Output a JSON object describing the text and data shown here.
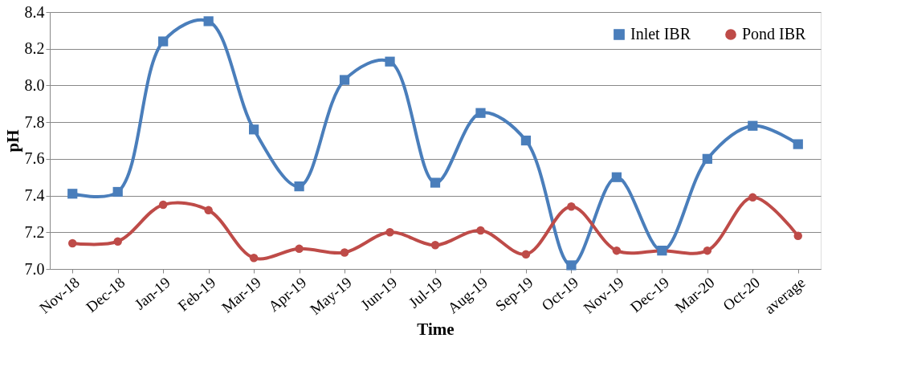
{
  "chart_data": {
    "type": "line",
    "xlabel": "Time",
    "ylabel": "pH",
    "categories": [
      "Nov-18",
      "Dec-18",
      "Jan-19",
      "Feb-19",
      "Mar-19",
      "Apr-19",
      "May-19",
      "Jun-19",
      "Jul-19",
      "Aug-19",
      "Sep-19",
      "Oct-19",
      "Nov-19",
      "Dec-19",
      "Mar-20",
      "Oct-20",
      "average"
    ],
    "series": [
      {
        "name": "Inlet IBR",
        "color": "#4a7ebb",
        "marker": "square",
        "values": [
          7.41,
          7.42,
          8.24,
          8.35,
          7.76,
          7.45,
          8.03,
          8.13,
          7.47,
          7.85,
          7.7,
          7.02,
          7.5,
          7.1,
          7.6,
          7.78,
          7.68
        ]
      },
      {
        "name": "Pond IBR",
        "color": "#be4b48",
        "marker": "circle",
        "values": [
          7.14,
          7.15,
          7.35,
          7.32,
          7.06,
          7.11,
          7.09,
          7.2,
          7.13,
          7.21,
          7.08,
          7.34,
          7.1,
          7.1,
          7.1,
          7.39,
          7.18
        ]
      }
    ],
    "ylim": [
      7.0,
      8.4
    ],
    "yticks": [
      {
        "value": 7.0,
        "label": "7.0"
      },
      {
        "value": 7.2,
        "label": "7.2"
      },
      {
        "value": 7.4,
        "label": "7.4"
      },
      {
        "value": 7.6,
        "label": "7.6"
      },
      {
        "value": 7.8,
        "label": "7.8"
      },
      {
        "value": 8.0,
        "label": "8.0"
      },
      {
        "value": 8.2,
        "label": "8.2"
      },
      {
        "value": 8.4,
        "label": "8.4"
      }
    ],
    "grid": "y",
    "legend": "top right",
    "line_style": "solid"
  }
}
